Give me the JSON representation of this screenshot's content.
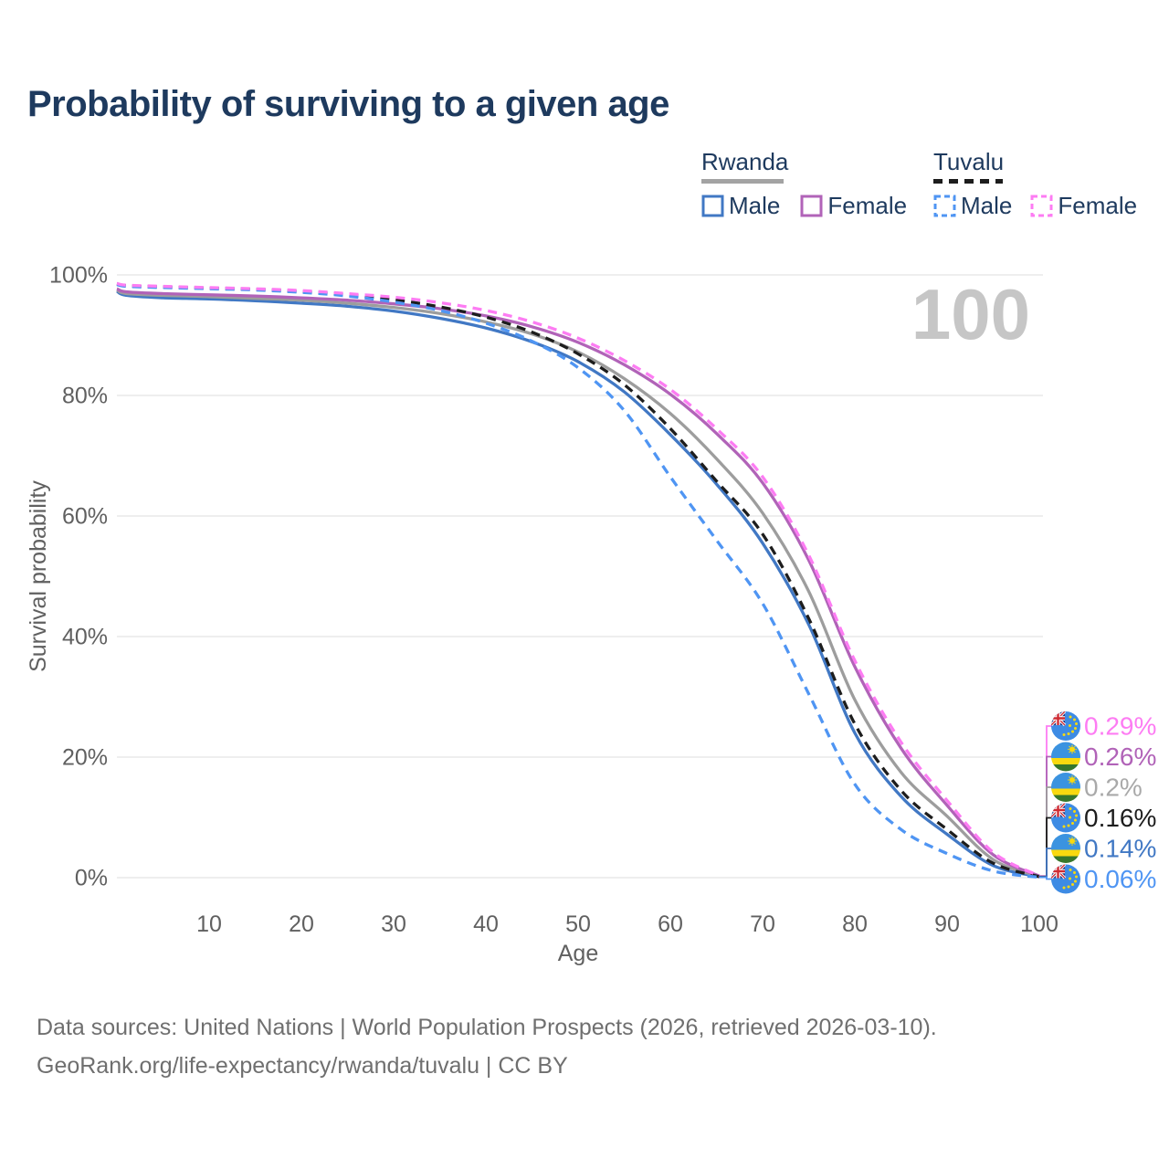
{
  "title": "Probability of surviving to a given age",
  "legend": {
    "groups": [
      {
        "key": "rwanda",
        "label": "Rwanda",
        "line_style": "solid",
        "underline_color": "#a3a3a3",
        "items": [
          {
            "key": "rwanda-male",
            "label": "Male"
          },
          {
            "key": "rwanda-female",
            "label": "Female"
          }
        ]
      },
      {
        "key": "tuvalu",
        "label": "Tuvalu",
        "line_style": "dashed",
        "underline_color": "#1d1d1d",
        "items": [
          {
            "key": "tuvalu-male",
            "label": "Male"
          },
          {
            "key": "tuvalu-female",
            "label": "Female"
          }
        ]
      }
    ]
  },
  "watermark": "100",
  "axes": {
    "x": {
      "label": "Age",
      "ticks": [
        10,
        20,
        30,
        40,
        50,
        60,
        70,
        80,
        90,
        100
      ],
      "range": [
        0,
        100
      ]
    },
    "y": {
      "label": "Survival probability",
      "ticks": [
        "0%",
        "20%",
        "40%",
        "60%",
        "80%",
        "100%"
      ],
      "range": [
        0,
        100
      ],
      "grid": true
    }
  },
  "chart_data": {
    "type": "line",
    "title": "Probability of surviving to a given age",
    "xlabel": "Age",
    "ylabel": "Survival probability",
    "xlim": [
      0,
      100
    ],
    "ylim": [
      0,
      100
    ],
    "ages": [
      0,
      1,
      5,
      10,
      15,
      20,
      25,
      30,
      35,
      40,
      45,
      50,
      55,
      60,
      65,
      70,
      75,
      80,
      85,
      90,
      95,
      100
    ],
    "series": [
      {
        "name": "Rwanda Male",
        "key": "rwanda-male",
        "color": "#4178c4",
        "label_color": "#4178c4",
        "dashed": false,
        "flag": "rwanda",
        "end_label": "0.14%",
        "end_value": 0.14,
        "values": [
          97.3,
          96.6,
          96.2,
          96.0,
          95.7,
          95.3,
          94.8,
          94.0,
          92.8,
          91.2,
          88.9,
          85.6,
          80.6,
          73.5,
          65.3,
          55.5,
          42.0,
          24.0,
          13.5,
          7.2,
          2.0,
          0.14
        ]
      },
      {
        "name": "Rwanda",
        "key": "rwanda-all",
        "color": "#9d9d9d",
        "label_color": "#a9a9a9",
        "dashed": false,
        "flag": "rwanda",
        "end_label": "0.2%",
        "end_value": 0.2,
        "values": [
          97.5,
          96.9,
          96.6,
          96.4,
          96.1,
          95.8,
          95.3,
          94.6,
          93.6,
          92.2,
          90.2,
          87.2,
          82.8,
          77.0,
          69.5,
          60.5,
          47.5,
          29.5,
          17.5,
          10.2,
          3.0,
          0.2
        ]
      },
      {
        "name": "Rwanda Female",
        "key": "rwanda-female",
        "color": "#b163b8",
        "label_color": "#b163b8",
        "dashed": false,
        "flag": "rwanda",
        "end_label": "0.26%",
        "end_value": 0.26,
        "values": [
          97.7,
          97.2,
          96.9,
          96.7,
          96.5,
          96.2,
          95.8,
          95.2,
          94.4,
          93.2,
          91.4,
          88.8,
          85.1,
          80.2,
          73.7,
          65.5,
          52.7,
          35.0,
          21.5,
          12.0,
          3.8,
          0.26
        ]
      },
      {
        "name": "Tuvalu",
        "key": "tuvalu-all",
        "color": "#1d1d1d",
        "label_color": "#1d1d1d",
        "dashed": true,
        "flag": "tuvalu",
        "end_label": "0.16%",
        "end_value": 0.16,
        "values": [
          98.5,
          98.2,
          98.0,
          97.8,
          97.6,
          97.2,
          96.7,
          95.9,
          94.7,
          93.0,
          90.5,
          86.9,
          81.8,
          74.5,
          65.8,
          57.0,
          43.0,
          25.5,
          14.5,
          8.0,
          2.4,
          0.16
        ]
      },
      {
        "name": "Tuvalu Male",
        "key": "tuvalu-male",
        "color": "#4f95f3",
        "label_color": "#4f95f3",
        "dashed": true,
        "flag": "tuvalu",
        "end_label": "0.06%",
        "end_value": 0.06,
        "values": [
          98.4,
          98.1,
          97.9,
          97.7,
          97.5,
          97.1,
          96.5,
          95.5,
          94.1,
          92.0,
          89.0,
          84.6,
          77.5,
          66.5,
          56.0,
          45.5,
          30.5,
          15.5,
          8.0,
          4.0,
          1.1,
          0.06
        ]
      },
      {
        "name": "Tuvalu Female",
        "key": "tuvalu-female",
        "color": "#fd7cf3",
        "label_color": "#fd7cf3",
        "dashed": true,
        "flag": "tuvalu",
        "end_label": "0.29%",
        "end_value": 0.29,
        "values": [
          98.6,
          98.3,
          98.1,
          97.9,
          97.7,
          97.4,
          96.9,
          96.3,
          95.4,
          94.1,
          92.2,
          89.5,
          85.8,
          81.0,
          74.5,
          66.5,
          53.5,
          36.0,
          22.5,
          12.8,
          4.2,
          0.29
        ]
      }
    ],
    "legend_position": "top-right"
  },
  "caption": {
    "line1": "Data sources: United Nations | World Population Prospects (2026, retrieved 2026-03-10).",
    "line2": "GeoRank.org/life-expectancy/rwanda/tuvalu | CC BY"
  }
}
